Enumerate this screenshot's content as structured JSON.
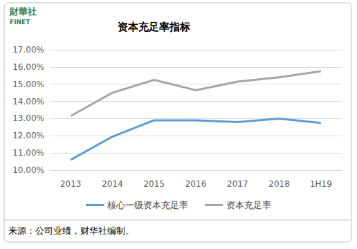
{
  "chart_data": {
    "type": "line",
    "title": "资本充足率指标",
    "logo": [
      "財華社",
      "FINET"
    ],
    "annotations": [
      "来源：公司业绩，财华社编制。"
    ],
    "categories": [
      "2013",
      "2014",
      "2015",
      "2016",
      "2017",
      "2018",
      "1H19"
    ],
    "series": [
      {
        "name": "核心一级资本充足率",
        "color": "#5b9bd5",
        "marker": "none",
        "line_style": "solid",
        "values": [
          10.6,
          11.95,
          12.9,
          12.9,
          12.8,
          13.0,
          12.75
        ]
      },
      {
        "name": "资本充足率",
        "color": "#a5a5a5",
        "marker": "none",
        "line_style": "solid",
        "values": [
          13.15,
          14.5,
          15.25,
          14.65,
          15.15,
          15.4,
          15.75
        ]
      }
    ],
    "ylim": [
      10,
      17
    ],
    "yticks": [
      {
        "value": 10,
        "label": "10.00%"
      },
      {
        "value": 11,
        "label": "11.00%"
      },
      {
        "value": 12,
        "label": "12.00%"
      },
      {
        "value": 13,
        "label": "13.00%"
      },
      {
        "value": 14,
        "label": "14.00%"
      },
      {
        "value": 15,
        "label": "15.00%"
      },
      {
        "value": 16,
        "label": "16.00%"
      },
      {
        "value": 17,
        "label": "17.00%"
      }
    ],
    "grid": true,
    "legend": "bottom"
  }
}
